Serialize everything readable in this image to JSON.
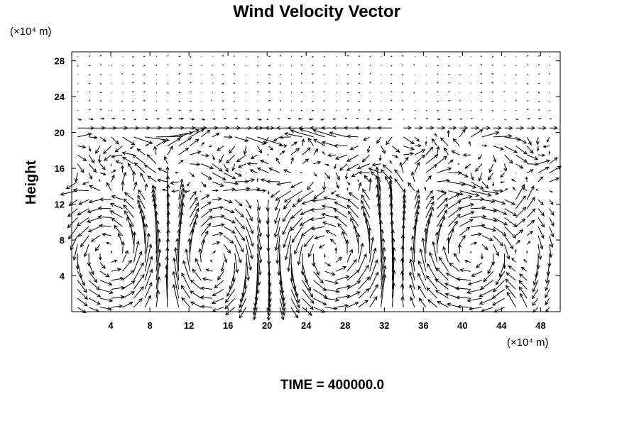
{
  "chart_data": {
    "type": "quiver",
    "title": "Wind Velocity Vector",
    "ylabel": "Height",
    "xlabel": "",
    "x_unit": "(×10⁴ m)",
    "y_unit": "(×10⁴ m)",
    "footer": "TIME = 400000.0",
    "xlim": [
      0,
      50
    ],
    "ylim": [
      0,
      29
    ],
    "x_ticks": [
      4,
      8,
      12,
      16,
      20,
      24,
      28,
      32,
      36,
      40,
      44,
      48
    ],
    "y_ticks": [
      4,
      8,
      12,
      16,
      20,
      24,
      28
    ],
    "x_tick_labels": [
      "4",
      "8",
      "12",
      "16",
      "20",
      "24",
      "28",
      "32",
      "36",
      "40",
      "44",
      "48"
    ],
    "y_tick_labels": [
      "4",
      "8",
      "12",
      "16",
      "20",
      "24",
      "28"
    ],
    "grid": false,
    "grid_x_spacing": 1.15,
    "grid_y_spacing": 1.0,
    "vortex_centers": [
      {
        "x": 5,
        "y": 6.5
      },
      {
        "x": 14,
        "y": 6.0
      },
      {
        "x": 26,
        "y": 6.5
      },
      {
        "x": 41,
        "y": 6.5
      }
    ],
    "updraft_columns_x": [
      10,
      32,
      46
    ],
    "upper_jet_y": 20
  }
}
